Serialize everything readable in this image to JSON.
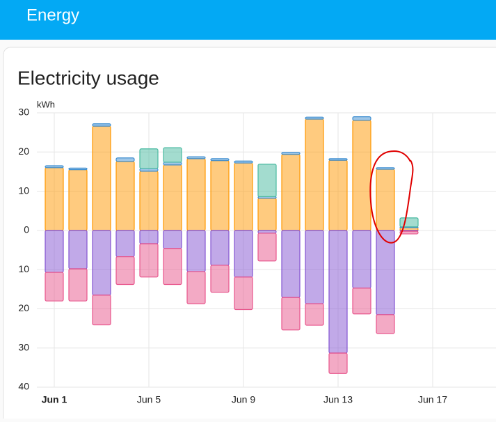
{
  "header": {
    "title": "Energy"
  },
  "chart_data": {
    "type": "bar",
    "stacked": true,
    "title": "Electricity usage",
    "y_label": "kWh",
    "categories": [
      "Jun 1",
      null,
      null,
      null,
      "Jun 5",
      null,
      null,
      null,
      "Jun 9",
      null,
      null,
      null,
      "Jun 13",
      null,
      null,
      null,
      "Jun 17"
    ],
    "series": [
      {
        "color": "#ff9800",
        "values": [
          16.0,
          15.5,
          26.6,
          17.6,
          15.1,
          16.7,
          18.3,
          17.8,
          17.2,
          8.2,
          19.4,
          28.4,
          17.9,
          28.1,
          15.6,
          0.7,
          null
        ]
      },
      {
        "color": "#3e8ed0",
        "values": [
          0.5,
          0.4,
          0.6,
          0.9,
          0.7,
          0.7,
          0.5,
          0.5,
          0.5,
          0.4,
          0.5,
          0.5,
          0.4,
          0.9,
          0.4,
          0.2,
          null
        ]
      },
      {
        "color": "#48b9a0",
        "values": [
          null,
          null,
          null,
          null,
          5.0,
          3.7,
          null,
          null,
          null,
          8.3,
          null,
          null,
          null,
          null,
          null,
          2.3,
          null
        ]
      },
      {
        "color": "#8353d1",
        "values": [
          -10.7,
          -9.8,
          -16.5,
          -6.7,
          -3.4,
          -4.6,
          -10.5,
          -8.9,
          -11.9,
          -0.7,
          -17.1,
          -18.7,
          -31.3,
          -14.7,
          -21.5,
          -0.2,
          null
        ]
      },
      {
        "color": "#e8558c",
        "values": [
          -7.3,
          -8.2,
          -7.6,
          -7.1,
          -8.5,
          -9.2,
          -8.2,
          -6.9,
          -8.3,
          -7.1,
          -8.3,
          -5.5,
          -5.2,
          -6.6,
          -4.8,
          -0.7,
          null
        ]
      }
    ],
    "ylim": [
      -40,
      30
    ],
    "yticks": [
      30,
      20,
      10,
      0,
      {
        "value": -10,
        "label": "10"
      },
      {
        "value": -20,
        "label": "20"
      },
      {
        "value": -30,
        "label": "30"
      },
      {
        "value": -40,
        "label": "40"
      }
    ],
    "grid": true
  }
}
